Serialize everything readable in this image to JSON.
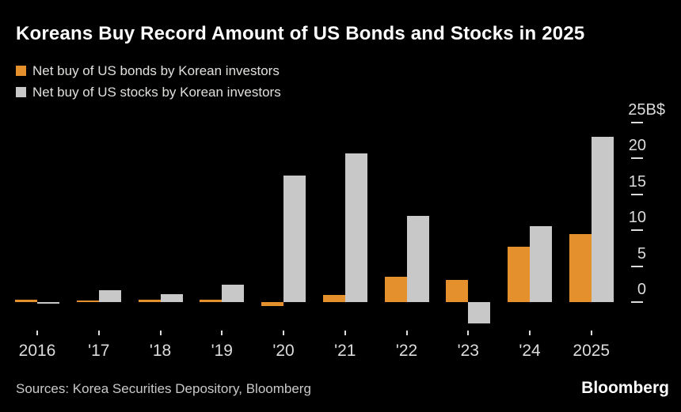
{
  "title": "Koreans Buy Record Amount of US Bonds and Stocks in 2025",
  "legend": [
    {
      "label": "Net buy of US bonds by Korean investors",
      "color": "#e3902d"
    },
    {
      "label": "Net buy of US stocks by Korean investors",
      "color": "#c8c8c8"
    }
  ],
  "footer": {
    "sources": "Sources: Korea Securities Depository, Bloomberg",
    "logo": "Bloomberg"
  },
  "colors": {
    "background": "#000000",
    "bonds": "#e3902d",
    "stocks": "#c8c8c8",
    "axis_text": "#dcdcdc",
    "tick": "#dcdcdc",
    "title_text": "#ffffff"
  },
  "chart_data": {
    "type": "bar",
    "title": "Koreans Buy Record Amount of US Bonds and Stocks in 2025",
    "categories": [
      "2016",
      "'17",
      "'18",
      "'19",
      "'20",
      "'21",
      "'22",
      "'23",
      "'24",
      "2025"
    ],
    "series": [
      {
        "name": "Net buy of US bonds by Korean investors",
        "color": "#e3902d",
        "values": [
          0.3,
          0.2,
          0.3,
          0.3,
          -0.6,
          1.0,
          3.5,
          3.1,
          7.7,
          9.5
        ]
      },
      {
        "name": "Net buy of US stocks by Korean investors",
        "color": "#c8c8c8",
        "values": [
          -0.1,
          1.6,
          1.1,
          2.4,
          17.6,
          20.7,
          12.0,
          -3.0,
          10.5,
          23.0
        ]
      }
    ],
    "unit": "B$",
    "xlabel": "",
    "ylabel": "",
    "yticks": [
      0,
      5,
      10,
      15,
      20,
      25
    ],
    "ytick_top_label": "25B$",
    "ylim": [
      -4,
      27.5
    ],
    "grid": false,
    "legend_position": "top-left",
    "axis_side": "right"
  }
}
